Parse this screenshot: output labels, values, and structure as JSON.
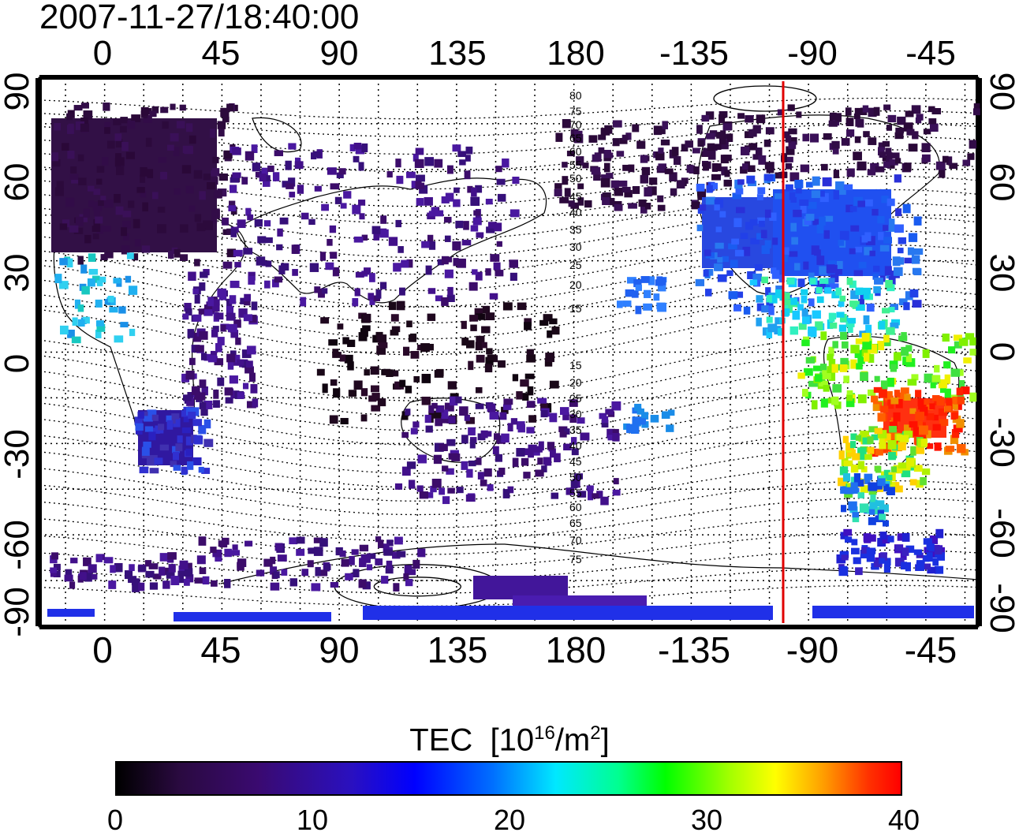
{
  "timestamp": "2007-11-27/18:40:00",
  "map": {
    "type": "map",
    "projection": "equirectangular",
    "lon_range": [
      -25,
      335
    ],
    "lat_range": [
      -90,
      90
    ],
    "top_ticks": [
      "0",
      "45",
      "90",
      "135",
      "180",
      "-135",
      "-90",
      "-45"
    ],
    "bottom_ticks": [
      "0",
      "45",
      "90",
      "135",
      "180",
      "-135",
      "-90",
      "-45"
    ],
    "left_ticks": [
      "90",
      "60",
      "30",
      "0",
      "-30",
      "-60",
      "-90"
    ],
    "right_ticks": [
      "90",
      "60",
      "30",
      "0",
      "-30",
      "-60",
      "-90"
    ],
    "tick_lons": [
      0,
      45,
      90,
      135,
      180,
      225,
      270,
      315
    ],
    "tick_lats": [
      90,
      60,
      30,
      0,
      -30,
      -60,
      -90
    ],
    "grid": true,
    "terminator_lon": -100,
    "terminator_color": "#e00000",
    "contour_labels_north": [
      "80",
      "75",
      "70",
      "65",
      "60",
      "55",
      "50",
      "45",
      "40",
      "35",
      "30",
      "25",
      "20",
      "15"
    ],
    "contour_labels_south": [
      "15",
      "20",
      "25",
      "30",
      "35",
      "40",
      "45",
      "50",
      "55",
      "60",
      "65",
      "70",
      "75"
    ]
  },
  "colorbar": {
    "title_main": "TEC",
    "title_unit_prefix": "[10",
    "title_exp": "16",
    "title_unit_mid": "/m",
    "title_exp2": "2",
    "title_unit_suffix": "]",
    "min": 0,
    "max": 40,
    "tick_labels": [
      "0",
      "10",
      "20",
      "30",
      "40"
    ]
  }
}
